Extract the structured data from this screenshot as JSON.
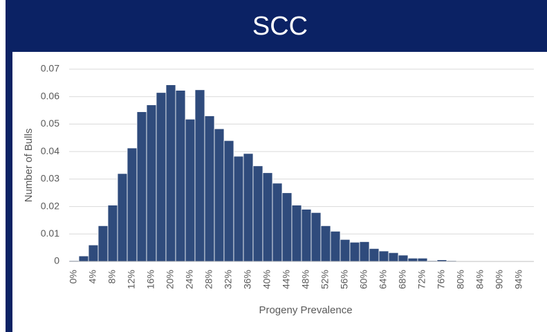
{
  "chart_data": {
    "type": "bar",
    "title": "SCC",
    "x_label": "Progeny Prevalence",
    "y_label": "Number of Bulls",
    "categories": [
      "0%",
      null,
      "4%",
      null,
      "8%",
      null,
      "12%",
      null,
      "16%",
      null,
      "20%",
      null,
      "24%",
      null,
      "28%",
      null,
      "32%",
      null,
      "36%",
      null,
      "40%",
      null,
      "44%",
      null,
      "48%",
      null,
      "52%",
      null,
      "56%",
      null,
      "60%",
      null,
      "64%",
      null,
      "68%",
      null,
      "72%",
      null,
      "76%",
      null,
      "80%",
      null,
      "84%",
      null,
      "90%",
      null,
      "94%",
      null
    ],
    "values": [
      0.0003,
      0.002,
      0.006,
      0.013,
      0.0205,
      0.032,
      0.0413,
      0.0545,
      0.057,
      0.0615,
      0.0643,
      0.0623,
      0.0518,
      0.0625,
      0.053,
      0.0483,
      0.044,
      0.0383,
      0.0393,
      0.0348,
      0.0323,
      0.0285,
      0.025,
      0.0205,
      0.019,
      0.0178,
      0.013,
      0.011,
      0.008,
      0.007,
      0.0072,
      0.0047,
      0.0038,
      0.0032,
      0.0023,
      0.0012,
      0.0012,
      0.0003,
      0.0006,
      0.0003,
      0.0001,
      0.0001,
      0.0001,
      0.0001,
      0.0001,
      0.0001,
      0.0001,
      0.0001
    ],
    "color": "#2f4b7c",
    "ylim": [
      0,
      0.07
    ],
    "yticks": [
      0,
      0.01,
      0.02,
      0.03,
      0.04,
      0.05,
      0.06,
      0.07
    ],
    "grid": true
  }
}
